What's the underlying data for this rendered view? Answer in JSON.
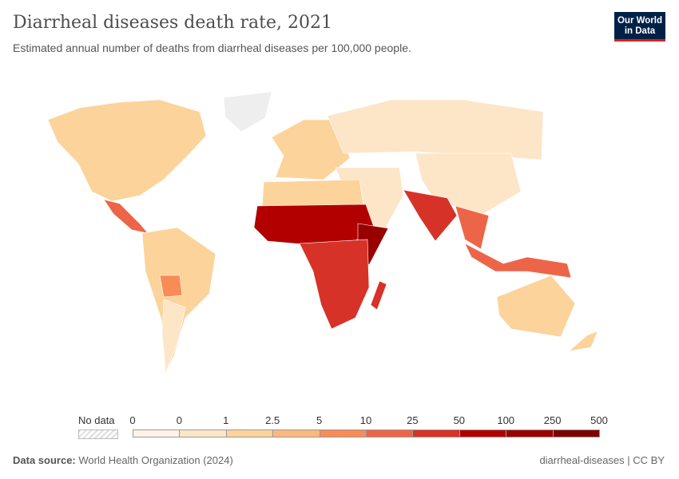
{
  "header": {
    "title": "Diarrheal diseases death rate, 2021",
    "subtitle": "Estimated annual number of deaths from diarrheal diseases per 100,000 people.",
    "logo": "Our World in Data"
  },
  "legend": {
    "no_data_label": "No data",
    "ticks": [
      "0",
      "0",
      "1",
      "2.5",
      "5",
      "10",
      "25",
      "50",
      "100",
      "250",
      "500"
    ],
    "colors": [
      "#fef3e6",
      "#fde5c8",
      "#fcd39a",
      "#fbb87f",
      "#f98b57",
      "#ec6549",
      "#d73228",
      "#b20000",
      "#990000",
      "#7c0000"
    ]
  },
  "footer": {
    "source_label": "Data source:",
    "source": "World Health Organization (2024)",
    "slug": "diarrheal-diseases | CC BY"
  },
  "map": {
    "regions": [
      {
        "name": "north-america",
        "bin": 2
      },
      {
        "name": "greenland",
        "bin": -1
      },
      {
        "name": "central-america",
        "bin": 5
      },
      {
        "name": "south-america",
        "bin": 2
      },
      {
        "name": "bolivia",
        "bin": 4
      },
      {
        "name": "argentina",
        "bin": 1
      },
      {
        "name": "europe",
        "bin": 2
      },
      {
        "name": "russia-north-asia",
        "bin": 1
      },
      {
        "name": "china",
        "bin": 1
      },
      {
        "name": "middle-east",
        "bin": 1
      },
      {
        "name": "north-africa",
        "bin": 2
      },
      {
        "name": "sahel",
        "bin": 7
      },
      {
        "name": "horn-of-africa",
        "bin": 8
      },
      {
        "name": "central-southern-africa",
        "bin": 6
      },
      {
        "name": "madagascar",
        "bin": 6
      },
      {
        "name": "south-asia",
        "bin": 6
      },
      {
        "name": "southeast-asia",
        "bin": 5
      },
      {
        "name": "indonesia",
        "bin": 5
      },
      {
        "name": "australia",
        "bin": 2
      },
      {
        "name": "new-zealand",
        "bin": 2
      }
    ]
  }
}
